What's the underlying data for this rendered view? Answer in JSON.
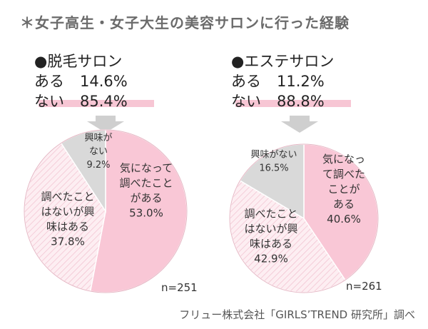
{
  "title": "＊女子高生・女子大生の美容サロンに行った経験",
  "footer": "フリュー株式会社「GIRLS’TREND 研究所」調べ",
  "colors": {
    "pink": "#f9c7d6",
    "hatch": "#fbe6ec",
    "gray": "#d9d9d9",
    "underline": "#f7c6d4",
    "arrow": "#cfcfcf"
  },
  "chart_data": [
    {
      "type": "pie",
      "heading": "●脱毛サロン",
      "stats": [
        {
          "label": "ある",
          "value": "14.6%"
        },
        {
          "label": "ない",
          "value": "85.4%"
        }
      ],
      "n": "n=251",
      "slices": [
        {
          "lines": [
            "気になって",
            "調べたこと",
            "がある",
            "53.0%"
          ],
          "value": 53.0,
          "color": "pink"
        },
        {
          "lines": [
            "調べたこと",
            "はないが興",
            "味はある",
            "37.8%"
          ],
          "value": 37.8,
          "color": "hatch"
        },
        {
          "lines": [
            "興味が",
            "ない",
            "9.2%"
          ],
          "value": 9.2,
          "color": "gray"
        }
      ]
    },
    {
      "type": "pie",
      "heading": "●エステサロン",
      "stats": [
        {
          "label": "ある",
          "value": "11.2%"
        },
        {
          "label": "ない",
          "value": "88.8%"
        }
      ],
      "n": "n=261",
      "slices": [
        {
          "lines": [
            "気になっ",
            "て調べた",
            "ことが",
            "ある",
            "40.6%"
          ],
          "value": 40.6,
          "color": "pink"
        },
        {
          "lines": [
            "調べたこと",
            "はないが興",
            "味はある",
            "42.9%"
          ],
          "value": 42.9,
          "color": "hatch"
        },
        {
          "lines": [
            "興味がない",
            "16.5%"
          ],
          "value": 16.5,
          "color": "gray"
        }
      ]
    }
  ]
}
